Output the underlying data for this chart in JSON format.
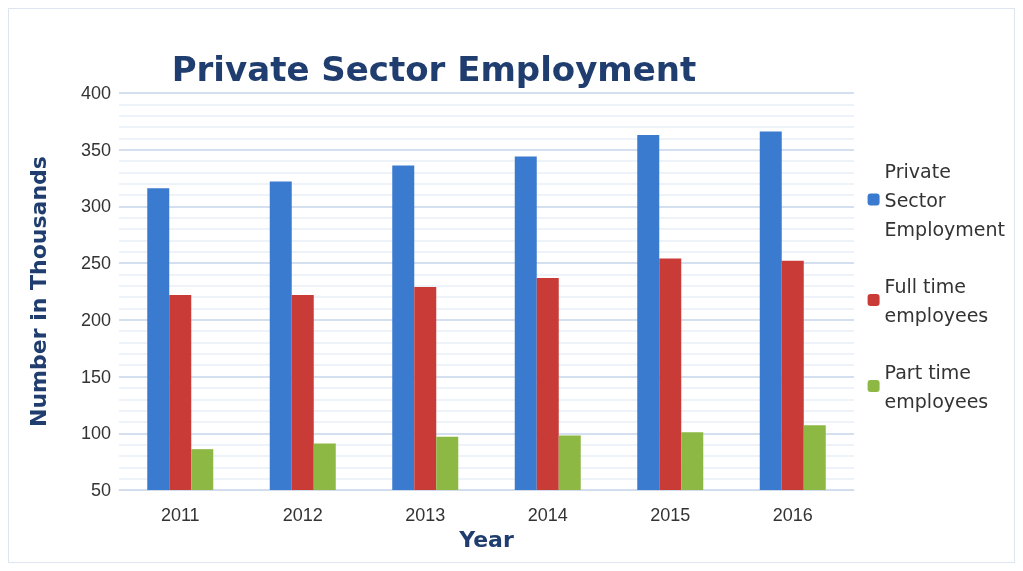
{
  "chart_data": {
    "type": "bar",
    "title": "Private Sector Employment",
    "xlabel": "Year",
    "ylabel": "Number in Thousands",
    "categories": [
      "2011",
      "2012",
      "2013",
      "2014",
      "2015",
      "2016"
    ],
    "series": [
      {
        "name": "Private Sector Employment",
        "color": "#3a7bd0",
        "values": [
          316,
          322,
          336,
          344,
          363,
          366
        ]
      },
      {
        "name": "Full time employees",
        "color": "#c93b37",
        "values": [
          222,
          222,
          229,
          237,
          254,
          252
        ]
      },
      {
        "name": "Part time employees",
        "color": "#8db844",
        "values": [
          86,
          91,
          97,
          98,
          101,
          107
        ]
      }
    ],
    "ylim": [
      50,
      400
    ],
    "yticks": [
      50,
      100,
      150,
      200,
      250,
      300,
      350,
      400
    ],
    "grid": "y",
    "legend": "right"
  }
}
